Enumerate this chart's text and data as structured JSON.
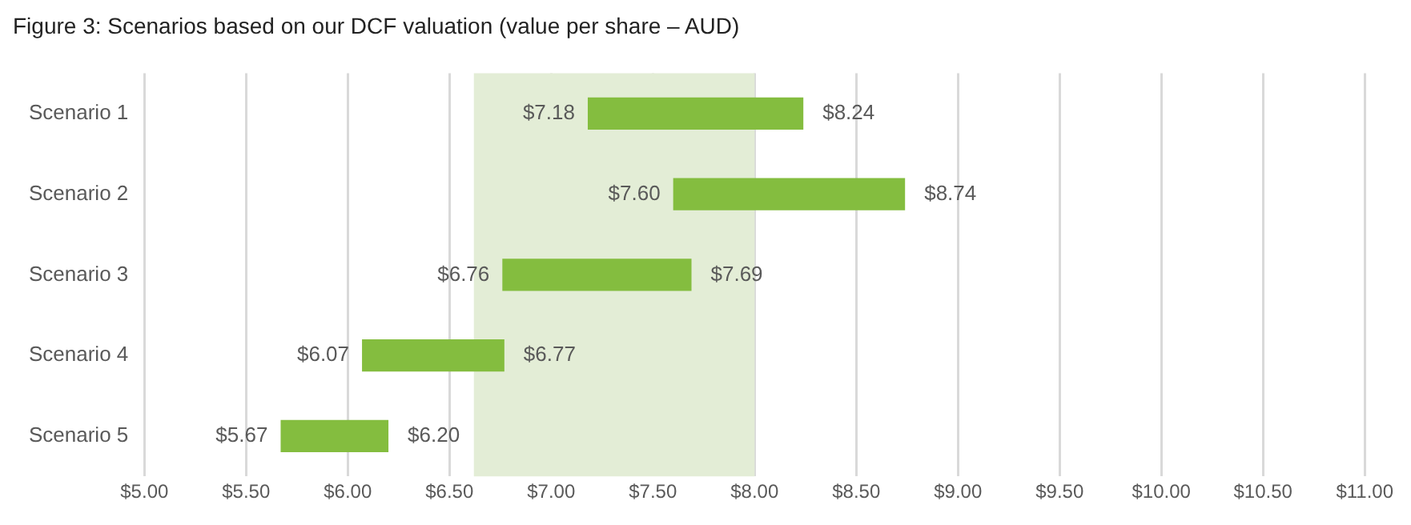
{
  "chart_data": {
    "type": "bar",
    "orientation": "horizontal",
    "title": "Figure 3: Scenarios based on our DCF valuation (value per share – AUD)",
    "categories": [
      "Scenario 1",
      "Scenario 2",
      "Scenario 3",
      "Scenario 4",
      "Scenario 5"
    ],
    "base": [
      7.18,
      7.6,
      6.76,
      6.07,
      5.67
    ],
    "values": [
      1.06,
      1.14,
      0.93,
      0.7,
      0.53
    ],
    "color": "#84bd3f",
    "xlim": [
      5,
      11
    ],
    "xticks": [
      {
        "value": 5,
        "label": "$5.00"
      },
      {
        "value": 5.5,
        "label": "$5.50"
      },
      {
        "value": 6,
        "label": "$6.00"
      },
      {
        "value": 6.5,
        "label": "$6.50"
      },
      {
        "value": 7,
        "label": "$7.00"
      },
      {
        "value": 7.5,
        "label": "$7.50"
      },
      {
        "value": 8,
        "label": "$8.00"
      },
      {
        "value": 8.5,
        "label": "$8.50"
      },
      {
        "value": 9,
        "label": "$9.00"
      },
      {
        "value": 9.5,
        "label": "$9.50"
      },
      {
        "value": 10,
        "label": "$10.00"
      },
      {
        "value": 10.5,
        "label": "$10.50"
      },
      {
        "value": 11,
        "label": "$11.00"
      }
    ],
    "bands": [
      {
        "axis": "x",
        "from": 6.62,
        "to": 8.0,
        "color": "#e3edd6"
      }
    ],
    "grid": "x",
    "annotations": [
      {
        "text": "$7.18",
        "x": 7.18,
        "y": "Scenario 1"
      },
      {
        "text": "$8.24",
        "x": 8.24,
        "y": "Scenario 1"
      },
      {
        "text": "$7.60",
        "x": 7.6,
        "y": "Scenario 2"
      },
      {
        "text": "$8.74",
        "x": 8.74,
        "y": "Scenario 2"
      },
      {
        "text": "$6.76",
        "x": 6.76,
        "y": "Scenario 3"
      },
      {
        "text": "$7.69",
        "x": 7.69,
        "y": "Scenario 3"
      },
      {
        "text": "$6.07",
        "x": 6.07,
        "y": "Scenario 4"
      },
      {
        "text": "$6.77",
        "x": 6.77,
        "y": "Scenario 4"
      },
      {
        "text": "$5.67",
        "x": 5.67,
        "y": "Scenario 5"
      },
      {
        "text": "$6.20",
        "x": 6.2,
        "y": "Scenario 5"
      }
    ]
  }
}
